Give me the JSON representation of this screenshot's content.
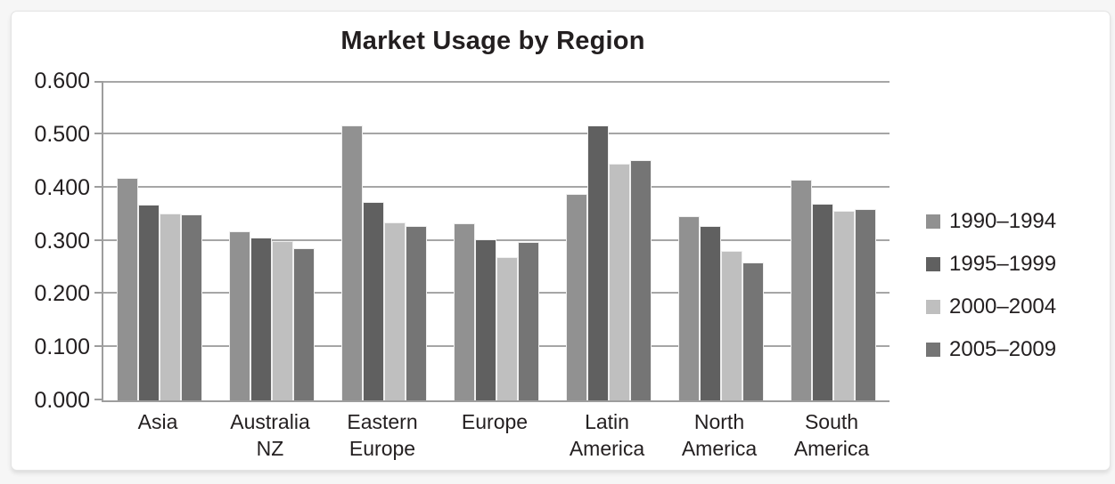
{
  "page": {
    "background": "#f6f6f6",
    "card_background": "#ffffff",
    "gridline_color": "#a6a6a6",
    "axis_color": "#9d9d9d",
    "text_color": "#231f20"
  },
  "chart_data": {
    "type": "bar",
    "title": "Market Usage by Region",
    "xlabel": "",
    "ylabel": "",
    "grid": true,
    "legend_position": "right",
    "ylim": [
      0,
      0.6
    ],
    "ytick_step": 0.1,
    "ytick_labels": [
      "0.000",
      "0.100",
      "0.200",
      "0.300",
      "0.400",
      "0.500",
      "0.600"
    ],
    "categories": [
      "Asia",
      "Australia NZ",
      "Eastern Europe",
      "Europe",
      "Latin America",
      "North America",
      "South America"
    ],
    "category_label_lines": [
      [
        "Asia"
      ],
      [
        "Australia",
        "NZ"
      ],
      [
        "Eastern",
        "Europe"
      ],
      [
        "Europe"
      ],
      [
        "Latin",
        "America"
      ],
      [
        "North",
        "America"
      ],
      [
        "South",
        "America"
      ]
    ],
    "series": [
      {
        "name": "1990–1994",
        "color": "#919191",
        "values": [
          0.418,
          0.318,
          0.517,
          0.333,
          0.388,
          0.346,
          0.415
        ]
      },
      {
        "name": "1995–1999",
        "color": "#606060",
        "values": [
          0.367,
          0.306,
          0.373,
          0.303,
          0.517,
          0.327,
          0.369
        ]
      },
      {
        "name": "2000–2004",
        "color": "#bfbfbf",
        "values": [
          0.351,
          0.299,
          0.335,
          0.269,
          0.444,
          0.28,
          0.356
        ]
      },
      {
        "name": "2005–2009",
        "color": "#757575",
        "values": [
          0.349,
          0.286,
          0.327,
          0.298,
          0.451,
          0.259,
          0.359
        ]
      }
    ]
  }
}
